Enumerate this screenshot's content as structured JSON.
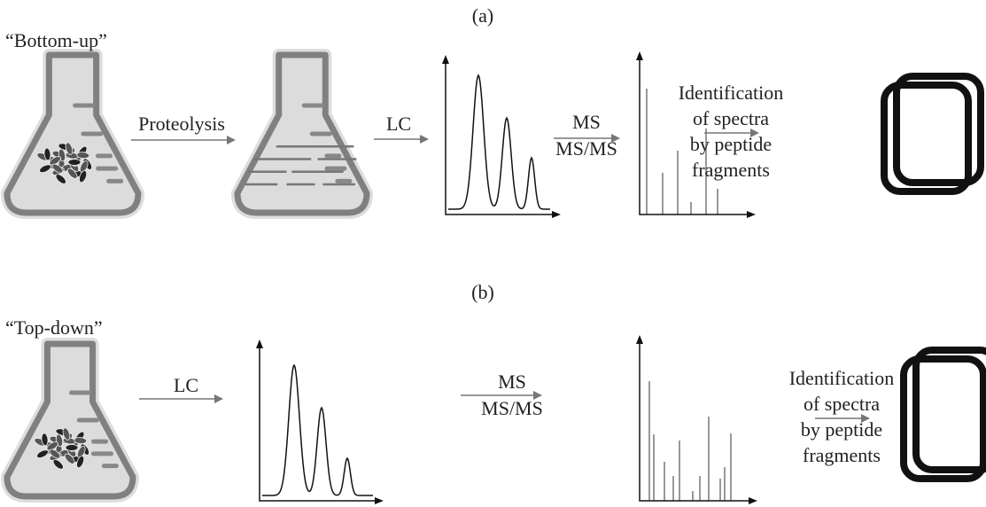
{
  "panels": [
    {
      "label": "(a)",
      "title": "“Bottom-up”",
      "steps": [
        "Proteolysis",
        "LC"
      ],
      "ms": [
        "MS",
        "MS/MS"
      ],
      "result": [
        "Identification",
        "of spectra",
        "by peptide",
        "fragments"
      ]
    },
    {
      "label": "(b)",
      "title": "“Top-down”",
      "steps": [
        "LC"
      ],
      "ms": [
        "MS",
        "MS/MS"
      ],
      "result": [
        "Identification",
        "of spectra",
        "by peptide",
        "fragments"
      ]
    }
  ]
}
